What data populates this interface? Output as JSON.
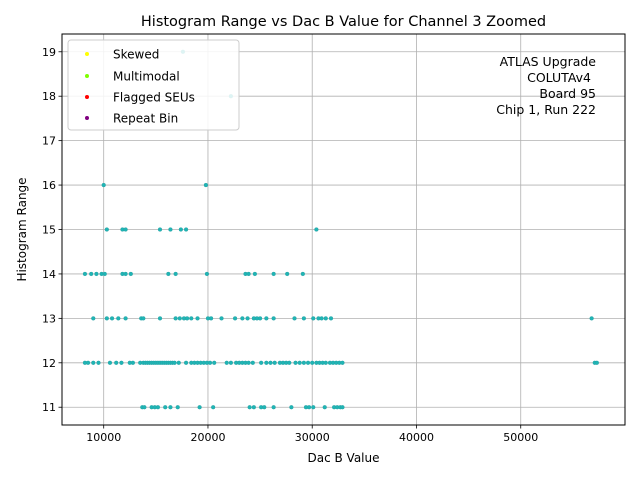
{
  "chart_data": {
    "type": "scatter",
    "title": "Histogram Range vs Dac B Value for Channel 3 Zoomed",
    "xlabel": "Dac B Value",
    "ylabel": "Histogram Range",
    "xlim": [
      6000,
      60000
    ],
    "ylim": [
      10.6,
      19.4
    ],
    "x_ticks": [
      10000,
      20000,
      30000,
      40000,
      50000
    ],
    "x_tick_labels": [
      "10000",
      "20000",
      "30000",
      "40000",
      "50000"
    ],
    "y_ticks": [
      11,
      12,
      13,
      14,
      15,
      16,
      17,
      18,
      19
    ],
    "y_tick_labels": [
      "11",
      "12",
      "13",
      "14",
      "15",
      "16",
      "17",
      "18",
      "19"
    ],
    "grid": true,
    "legend": {
      "placement": "top-left",
      "entries": [
        {
          "label": "Skewed",
          "color": "#ffff00"
        },
        {
          "label": "Multimodal",
          "color": "#7fff00"
        },
        {
          "label": "Flagged SEUs",
          "color": "#ff0000"
        },
        {
          "label": "Repeat Bin",
          "color": "#800080"
        }
      ]
    },
    "annotation": [
      "ATLAS Upgrade",
      "COLUTAv4",
      "Board 95",
      "Chip 1, Run 222"
    ],
    "point_color": "#1fb5b5",
    "points": [
      [
        17600,
        19
      ],
      [
        22200,
        18
      ],
      [
        10000,
        16
      ],
      [
        19800,
        16
      ],
      [
        10300,
        15
      ],
      [
        11800,
        15
      ],
      [
        12100,
        15
      ],
      [
        15400,
        15
      ],
      [
        16400,
        15
      ],
      [
        17400,
        15
      ],
      [
        17900,
        15
      ],
      [
        30400,
        15
      ],
      [
        8200,
        14
      ],
      [
        8800,
        14
      ],
      [
        9300,
        14
      ],
      [
        9800,
        14
      ],
      [
        10100,
        14
      ],
      [
        11800,
        14
      ],
      [
        12100,
        14
      ],
      [
        12600,
        14
      ],
      [
        16200,
        14
      ],
      [
        16900,
        14
      ],
      [
        19900,
        14
      ],
      [
        23600,
        14
      ],
      [
        23900,
        14
      ],
      [
        24500,
        14
      ],
      [
        26300,
        14
      ],
      [
        27600,
        14
      ],
      [
        29100,
        14
      ],
      [
        9000,
        13
      ],
      [
        10300,
        13
      ],
      [
        10800,
        13
      ],
      [
        11400,
        13
      ],
      [
        12100,
        13
      ],
      [
        13600,
        13
      ],
      [
        13800,
        13
      ],
      [
        15400,
        13
      ],
      [
        16900,
        13
      ],
      [
        17300,
        13
      ],
      [
        17700,
        13
      ],
      [
        18000,
        13
      ],
      [
        18400,
        13
      ],
      [
        19000,
        13
      ],
      [
        20000,
        13
      ],
      [
        20300,
        13
      ],
      [
        21300,
        13
      ],
      [
        22600,
        13
      ],
      [
        23300,
        13
      ],
      [
        23800,
        13
      ],
      [
        24400,
        13
      ],
      [
        24700,
        13
      ],
      [
        25000,
        13
      ],
      [
        25600,
        13
      ],
      [
        26300,
        13
      ],
      [
        28300,
        13
      ],
      [
        29200,
        13
      ],
      [
        30100,
        13
      ],
      [
        30600,
        13
      ],
      [
        30900,
        13
      ],
      [
        31300,
        13
      ],
      [
        31800,
        13
      ],
      [
        56800,
        13
      ],
      [
        8200,
        12
      ],
      [
        8500,
        12
      ],
      [
        9000,
        12
      ],
      [
        9500,
        12
      ],
      [
        10600,
        12
      ],
      [
        11200,
        12
      ],
      [
        11700,
        12
      ],
      [
        12500,
        12
      ],
      [
        12800,
        12
      ],
      [
        13500,
        12
      ],
      [
        13800,
        12
      ],
      [
        14000,
        12
      ],
      [
        14200,
        12
      ],
      [
        14400,
        12
      ],
      [
        14600,
        12
      ],
      [
        14800,
        12
      ],
      [
        15000,
        12
      ],
      [
        15200,
        12
      ],
      [
        15400,
        12
      ],
      [
        15600,
        12
      ],
      [
        15800,
        12
      ],
      [
        16000,
        12
      ],
      [
        16200,
        12
      ],
      [
        16400,
        12
      ],
      [
        16600,
        12
      ],
      [
        16800,
        12
      ],
      [
        17200,
        12
      ],
      [
        17900,
        12
      ],
      [
        18400,
        12
      ],
      [
        18700,
        12
      ],
      [
        19000,
        12
      ],
      [
        19300,
        12
      ],
      [
        19600,
        12
      ],
      [
        19900,
        12
      ],
      [
        20200,
        12
      ],
      [
        20600,
        12
      ],
      [
        21800,
        12
      ],
      [
        22200,
        12
      ],
      [
        22700,
        12
      ],
      [
        23000,
        12
      ],
      [
        23300,
        12
      ],
      [
        23600,
        12
      ],
      [
        23900,
        12
      ],
      [
        24300,
        12
      ],
      [
        25100,
        12
      ],
      [
        25600,
        12
      ],
      [
        26000,
        12
      ],
      [
        26400,
        12
      ],
      [
        26900,
        12
      ],
      [
        27200,
        12
      ],
      [
        27500,
        12
      ],
      [
        27800,
        12
      ],
      [
        28400,
        12
      ],
      [
        28800,
        12
      ],
      [
        29200,
        12
      ],
      [
        29600,
        12
      ],
      [
        30000,
        12
      ],
      [
        30400,
        12
      ],
      [
        30700,
        12
      ],
      [
        31000,
        12
      ],
      [
        31300,
        12
      ],
      [
        31700,
        12
      ],
      [
        32000,
        12
      ],
      [
        32300,
        12
      ],
      [
        32600,
        12
      ],
      [
        32900,
        12
      ],
      [
        57100,
        12
      ],
      [
        57300,
        12
      ],
      [
        13700,
        11
      ],
      [
        13900,
        11
      ],
      [
        14600,
        11
      ],
      [
        14900,
        11
      ],
      [
        15200,
        11
      ],
      [
        15900,
        11
      ],
      [
        16400,
        11
      ],
      [
        17100,
        11
      ],
      [
        19200,
        11
      ],
      [
        20500,
        11
      ],
      [
        24000,
        11
      ],
      [
        24400,
        11
      ],
      [
        25100,
        11
      ],
      [
        25400,
        11
      ],
      [
        26300,
        11
      ],
      [
        28000,
        11
      ],
      [
        29400,
        11
      ],
      [
        29700,
        11
      ],
      [
        30100,
        11
      ],
      [
        31200,
        11
      ],
      [
        32100,
        11
      ],
      [
        32400,
        11
      ],
      [
        32700,
        11
      ],
      [
        32900,
        11
      ]
    ]
  }
}
